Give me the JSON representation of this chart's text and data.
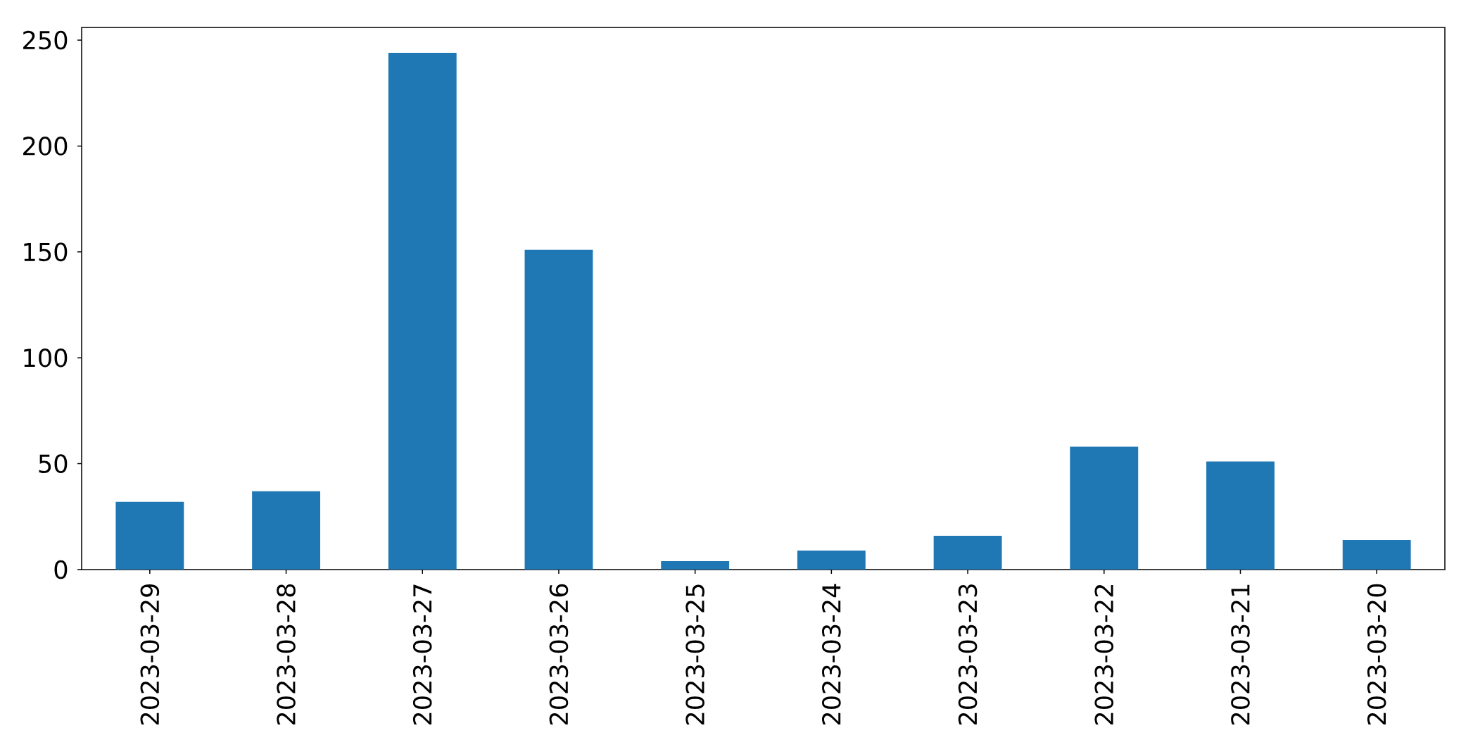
{
  "chart_data": {
    "type": "bar",
    "categories": [
      "2023-03-29",
      "2023-03-28",
      "2023-03-27",
      "2023-03-26",
      "2023-03-25",
      "2023-03-24",
      "2023-03-23",
      "2023-03-22",
      "2023-03-21",
      "2023-03-20"
    ],
    "values": [
      32,
      37,
      244,
      151,
      4,
      9,
      16,
      58,
      51,
      14
    ],
    "color": "#1f77b4",
    "ylim": [
      0,
      256
    ],
    "yticks": [
      0,
      50,
      100,
      150,
      200,
      250
    ]
  }
}
